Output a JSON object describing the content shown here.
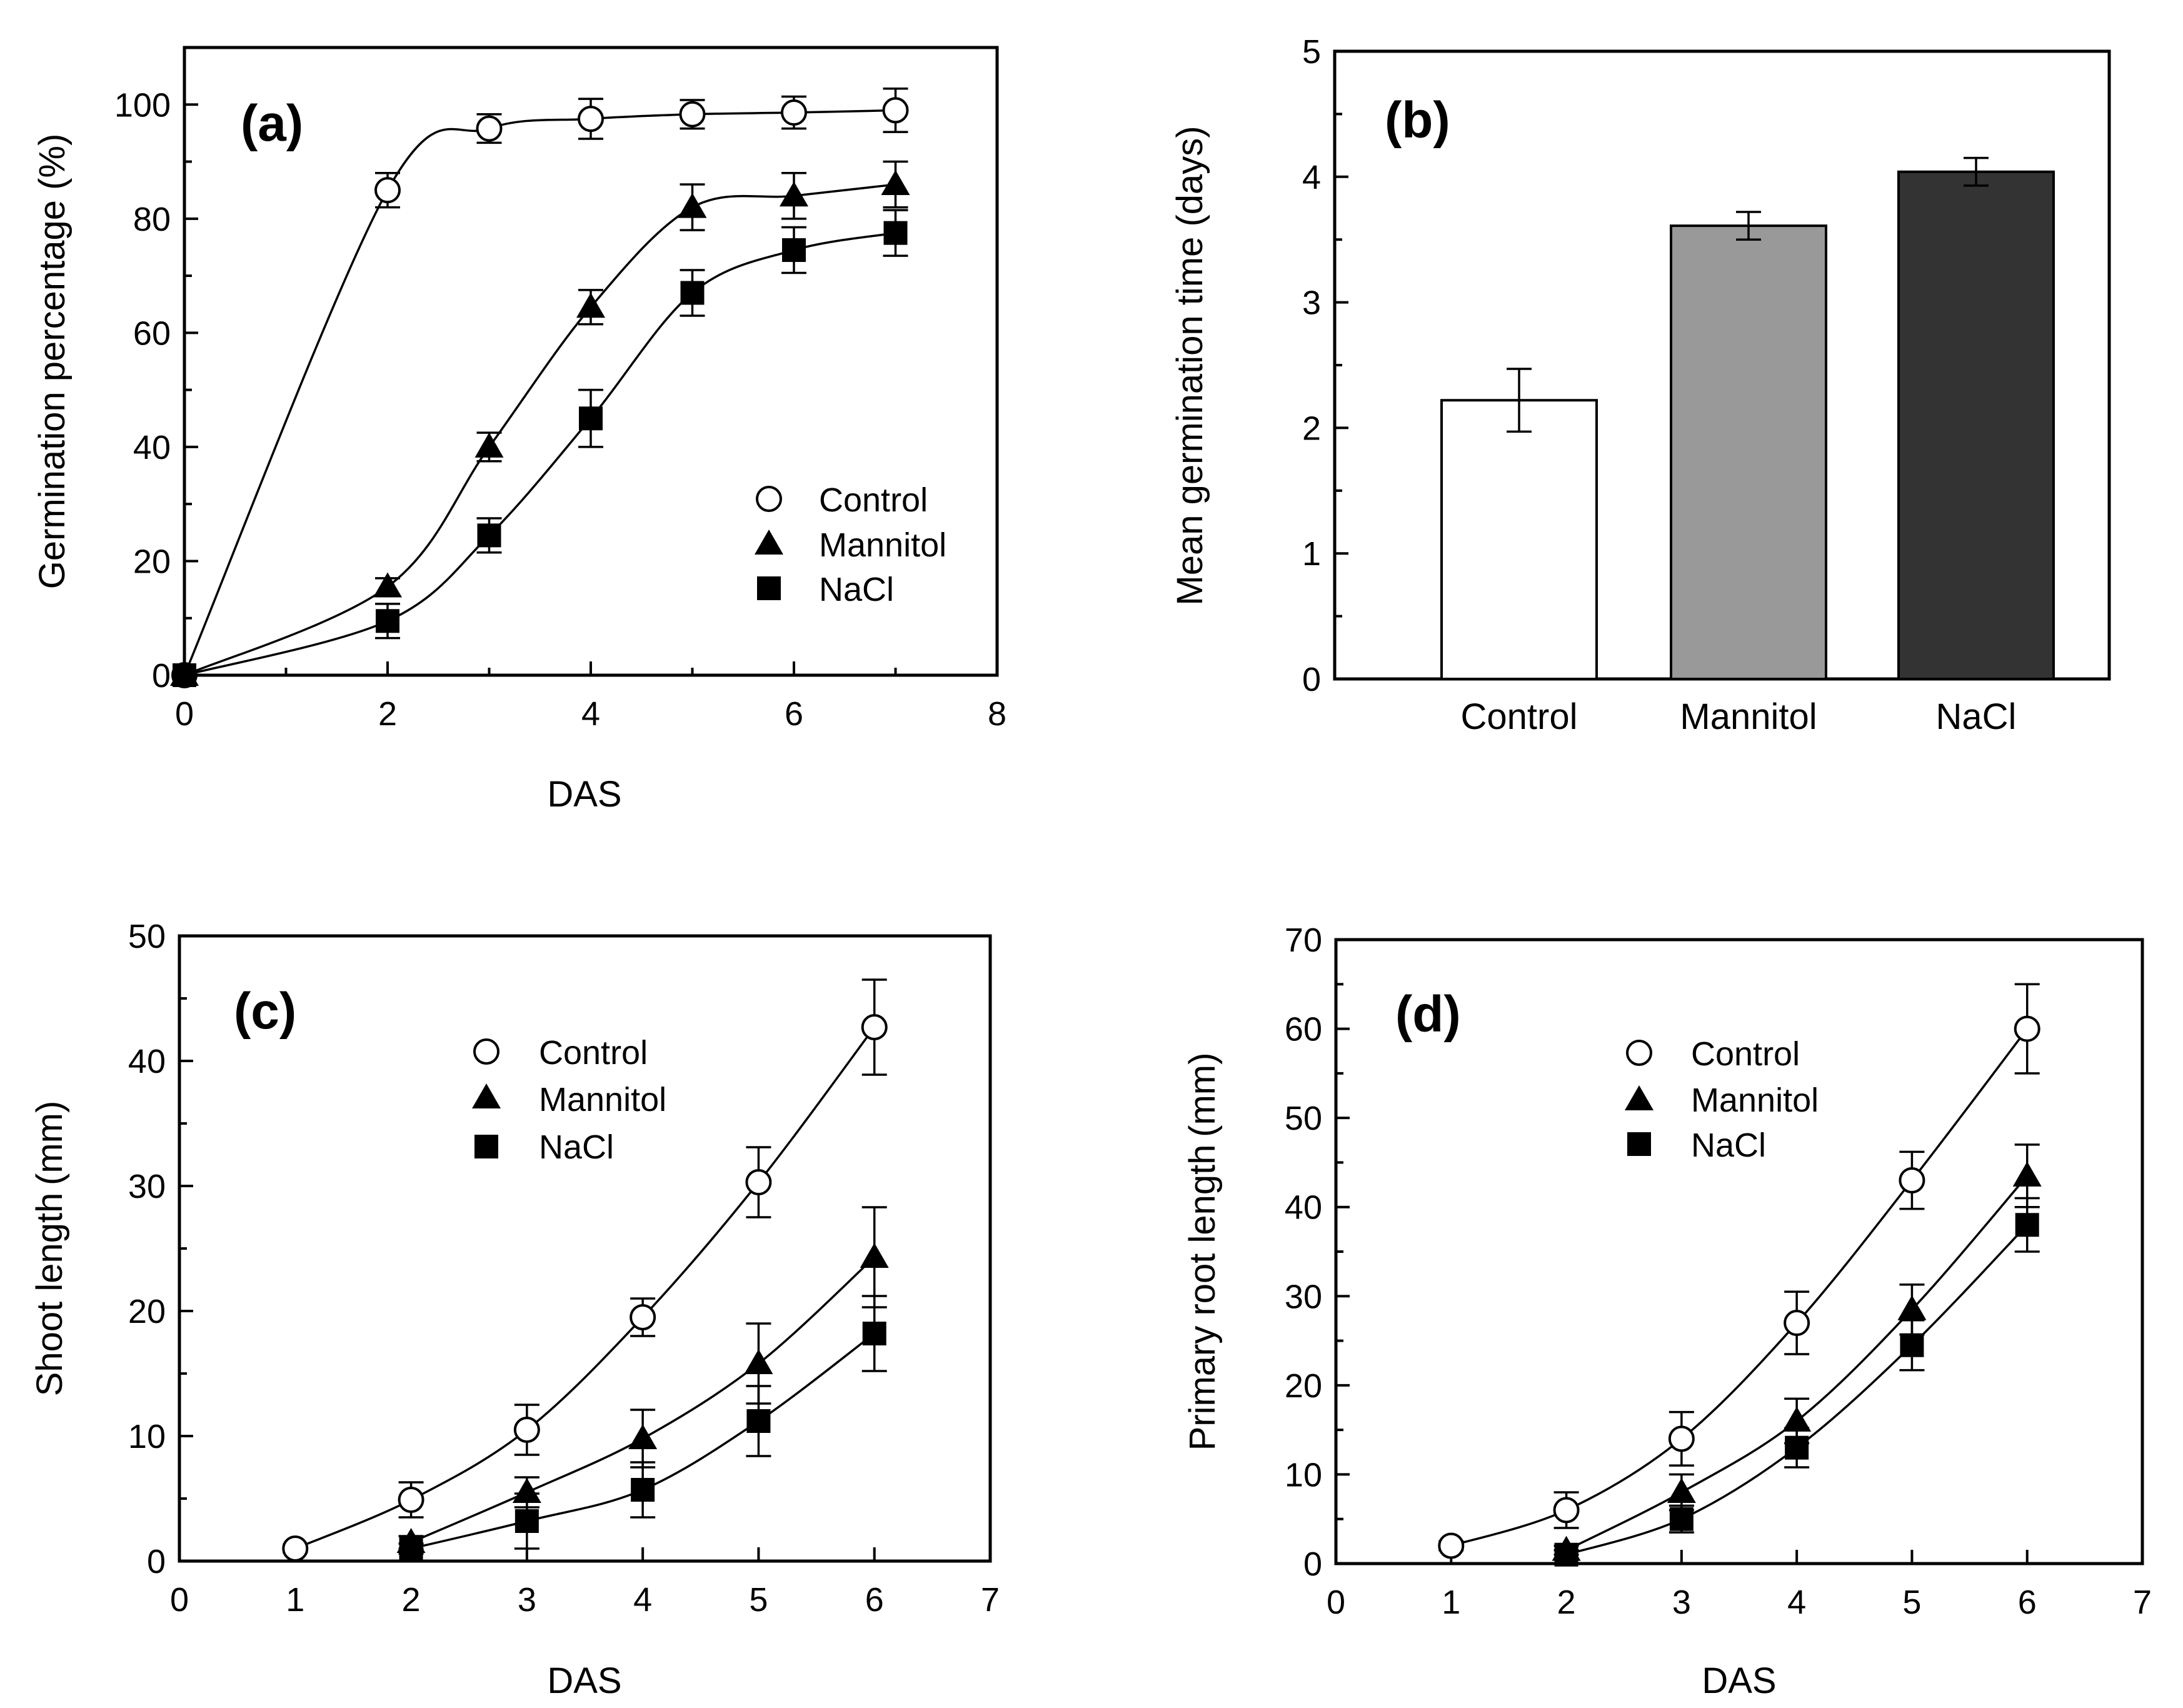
{
  "chart_data": [
    {
      "id": "a",
      "type": "line",
      "panel_label": "(a)",
      "xlabel": "DAS",
      "ylabel": "Germination percentage (%)",
      "xlim": [
        0,
        8
      ],
      "ylim": [
        0,
        110
      ],
      "xticks": [
        0,
        2,
        4,
        6,
        8
      ],
      "yticks": [
        0,
        20,
        40,
        60,
        80,
        100
      ],
      "legend_position": "right",
      "series": [
        {
          "name": "Control",
          "marker": "circle",
          "x": [
            0,
            2,
            3,
            4,
            5,
            6,
            7
          ],
          "y": [
            0,
            85,
            95.8,
            97.5,
            98.3,
            98.6,
            99
          ],
          "err": [
            0,
            3,
            2.5,
            3.5,
            2.5,
            2.8,
            3.8
          ]
        },
        {
          "name": "Mannitol",
          "marker": "triangle",
          "x": [
            0,
            2,
            3,
            4,
            5,
            6,
            7
          ],
          "y": [
            0,
            15.5,
            40,
            64.5,
            82,
            84,
            86
          ],
          "err": [
            0,
            1.5,
            2.5,
            3,
            4,
            4,
            4
          ]
        },
        {
          "name": "NaCl",
          "marker": "square",
          "x": [
            0,
            2,
            3,
            4,
            5,
            6,
            7
          ],
          "y": [
            0,
            9.5,
            24.5,
            45,
            67,
            74.5,
            77.5
          ],
          "err": [
            0,
            3,
            3,
            5,
            4,
            4,
            4
          ]
        }
      ]
    },
    {
      "id": "b",
      "type": "bar",
      "panel_label": "(b)",
      "xlabel": "",
      "ylabel": "Mean germination time (days)",
      "ylim": [
        0,
        5
      ],
      "yticks": [
        0,
        1,
        2,
        3,
        4,
        5
      ],
      "categories": [
        "Control",
        "Mannitol",
        "NaCl"
      ],
      "values": [
        2.22,
        3.61,
        4.04
      ],
      "err": [
        0.25,
        0.11,
        0.11
      ],
      "colors": [
        "#ffffff",
        "#999999",
        "#333333"
      ]
    },
    {
      "id": "c",
      "type": "line",
      "panel_label": "(c)",
      "xlabel": "DAS",
      "ylabel": "Shoot length (mm)",
      "xlim": [
        0,
        7
      ],
      "ylim": [
        0,
        50
      ],
      "xticks": [
        0,
        1,
        2,
        3,
        4,
        5,
        6,
        7
      ],
      "yticks": [
        0,
        10,
        20,
        30,
        40,
        50
      ],
      "legend_position": "top-center",
      "series": [
        {
          "name": "Control",
          "marker": "circle",
          "x": [
            1,
            2,
            3,
            4,
            5,
            6
          ],
          "y": [
            1,
            4.9,
            10.5,
            19.5,
            30.3,
            42.7
          ],
          "err": [
            0.3,
            1.4,
            2,
            1.5,
            2.8,
            3.8
          ]
        },
        {
          "name": "Mannitol",
          "marker": "triangle",
          "x": [
            2,
            3,
            4,
            5,
            6
          ],
          "y": [
            1.5,
            5.5,
            9.8,
            15.8,
            24.3
          ],
          "err": [
            0.5,
            1.2,
            2.3,
            3.2,
            4
          ]
        },
        {
          "name": "NaCl",
          "marker": "square",
          "x": [
            2,
            3,
            4,
            5,
            6
          ],
          "y": [
            1,
            3.2,
            5.7,
            11.2,
            18.2
          ],
          "err": [
            0.4,
            2.2,
            2.2,
            2.8,
            3
          ]
        }
      ]
    },
    {
      "id": "d",
      "type": "line",
      "panel_label": "(d)",
      "xlabel": "DAS",
      "ylabel": "Primary root length (mm)",
      "xlim": [
        0,
        7
      ],
      "ylim": [
        0,
        70
      ],
      "xticks": [
        0,
        1,
        2,
        3,
        4,
        5,
        6,
        7
      ],
      "yticks": [
        0,
        10,
        20,
        30,
        40,
        50,
        60,
        70
      ],
      "legend_position": "top-center",
      "series": [
        {
          "name": "Control",
          "marker": "circle",
          "x": [
            1,
            2,
            3,
            4,
            5,
            6
          ],
          "y": [
            2,
            6,
            14,
            27,
            43,
            60
          ],
          "err": [
            0.5,
            2,
            3,
            3.5,
            3.2,
            5
          ]
        },
        {
          "name": "Mannitol",
          "marker": "triangle",
          "x": [
            2,
            3,
            4,
            5,
            6
          ],
          "y": [
            1.5,
            8,
            16,
            28.5,
            43.5
          ],
          "err": [
            0.5,
            2,
            2.5,
            2.8,
            3.5
          ]
        },
        {
          "name": "NaCl",
          "marker": "square",
          "x": [
            2,
            3,
            4,
            5,
            6
          ],
          "y": [
            1,
            5,
            13,
            24.5,
            38
          ],
          "err": [
            0.5,
            1.5,
            2.2,
            2.8,
            3
          ]
        }
      ]
    }
  ]
}
